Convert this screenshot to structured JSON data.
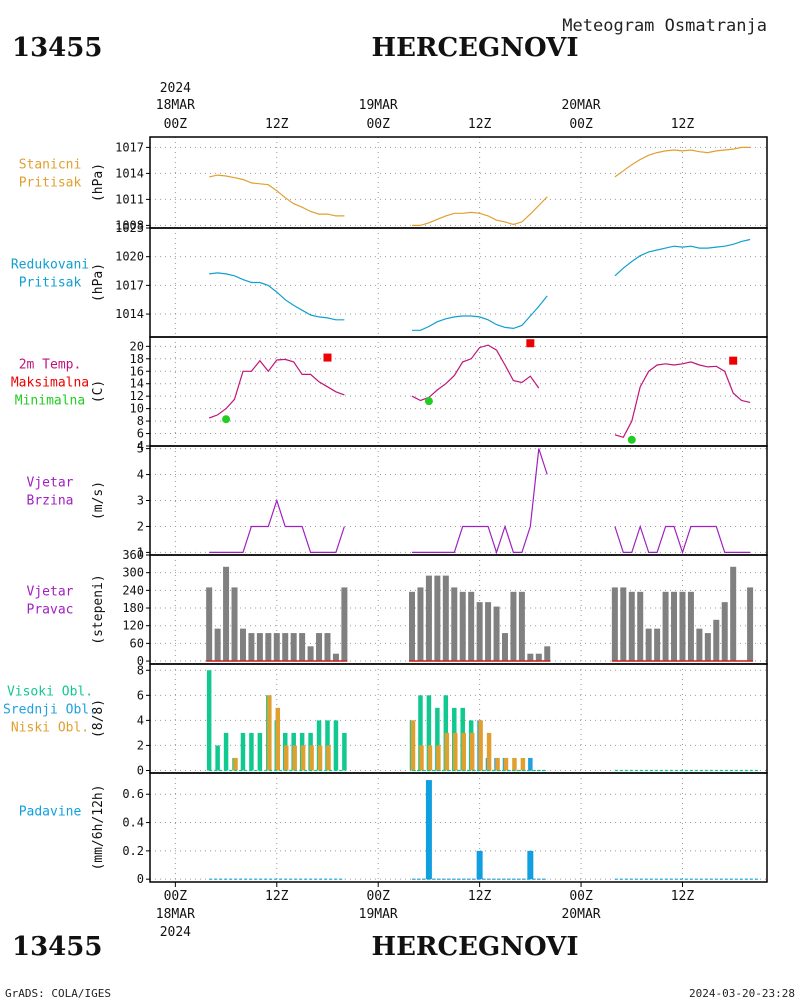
{
  "header": {
    "station_id": "13455",
    "station_name": "HERCEGNOVI",
    "product": "Meteogram Osmatranja"
  },
  "footer": {
    "credit": "GrADS: COLA/IGES",
    "timestamp": "2024-03-20-23:28"
  },
  "time_axis": {
    "year": "2024",
    "ticks": [
      {
        "hour": 0,
        "top": "18MAR",
        "bottom": "00Z"
      },
      {
        "hour": 12,
        "top": "",
        "bottom": "12Z"
      },
      {
        "hour": 24,
        "top": "19MAR",
        "bottom": "00Z"
      },
      {
        "hour": 36,
        "top": "",
        "bottom": "12Z"
      },
      {
        "hour": 48,
        "top": "20MAR",
        "bottom": "00Z"
      },
      {
        "hour": 60,
        "top": "",
        "bottom": "12Z"
      }
    ],
    "xlim_hours": [
      -3,
      70
    ]
  },
  "colors": {
    "pressure_station": "#e0a030",
    "pressure_reduced": "#10a0d0",
    "temperature": "#c0157a",
    "tmax": "#ee0000",
    "tmin": "#22cc22",
    "wind": "#a020c0",
    "wind_dir_bars": "#808080",
    "cloud_high": "#10c890",
    "cloud_middle": "#20a0e0",
    "cloud_low": "#e0a030",
    "precip": "#10a0e0",
    "grid": "#999999"
  },
  "chart_data": [
    {
      "id": "station-pressure",
      "type": "line",
      "labels": [
        "Stanicni",
        "Pritisak"
      ],
      "ylabel": "(hPa)",
      "ylim": [
        1007.7,
        1018.2
      ],
      "yticks": [
        1008,
        1011,
        1014,
        1017
      ],
      "color_key": "pressure_station",
      "series": [
        {
          "x": [
            4,
            5,
            6,
            7,
            8,
            9,
            10,
            11,
            12,
            13,
            14,
            15,
            16,
            17,
            18,
            19,
            20
          ],
          "y": [
            1013.6,
            1013.8,
            1013.7,
            1013.5,
            1013.3,
            1012.9,
            1012.8,
            1012.7,
            1012.0,
            1011.2,
            1010.5,
            1010.1,
            1009.6,
            1009.3,
            1009.3,
            1009.1,
            1009.1
          ]
        },
        {
          "x": [
            28,
            29,
            30,
            31,
            32,
            33,
            34,
            35,
            36,
            37,
            38,
            39,
            40,
            41,
            42,
            43,
            44
          ],
          "y": [
            1008.0,
            1008.0,
            1008.3,
            1008.7,
            1009.1,
            1009.4,
            1009.4,
            1009.5,
            1009.4,
            1009.1,
            1008.6,
            1008.4,
            1008.1,
            1008.4,
            1009.3,
            1010.3,
            1011.3
          ]
        },
        {
          "x": [
            52,
            53,
            54,
            55,
            56,
            57,
            58,
            59,
            60,
            61,
            62,
            63,
            64,
            65,
            66,
            67,
            68
          ],
          "y": [
            1013.6,
            1014.3,
            1015.0,
            1015.6,
            1016.1,
            1016.4,
            1016.6,
            1016.7,
            1016.6,
            1016.7,
            1016.5,
            1016.4,
            1016.6,
            1016.7,
            1016.8,
            1017.0,
            1017.0
          ]
        }
      ]
    },
    {
      "id": "reduced-pressure",
      "type": "line",
      "labels": [
        "Redukovani",
        "Pritisak"
      ],
      "ylabel": "(hPa)",
      "ylim": [
        1011.6,
        1023.0
      ],
      "yticks": [
        1014,
        1017,
        1020,
        1023
      ],
      "color_key": "pressure_reduced",
      "series": [
        {
          "x": [
            4,
            5,
            6,
            7,
            8,
            9,
            10,
            11,
            12,
            13,
            14,
            15,
            16,
            17,
            18,
            19,
            20
          ],
          "y": [
            1018.2,
            1018.3,
            1018.2,
            1018.0,
            1017.6,
            1017.3,
            1017.3,
            1017.0,
            1016.3,
            1015.5,
            1014.9,
            1014.4,
            1013.9,
            1013.7,
            1013.6,
            1013.4,
            1013.4
          ]
        },
        {
          "x": [
            28,
            29,
            30,
            31,
            32,
            33,
            34,
            35,
            36,
            37,
            38,
            39,
            40,
            41,
            42,
            43,
            44
          ],
          "y": [
            1012.3,
            1012.3,
            1012.7,
            1013.2,
            1013.5,
            1013.7,
            1013.8,
            1013.8,
            1013.7,
            1013.4,
            1012.9,
            1012.6,
            1012.5,
            1012.8,
            1013.8,
            1014.8,
            1015.9
          ]
        },
        {
          "x": [
            52,
            53,
            54,
            55,
            56,
            57,
            58,
            59,
            60,
            61,
            62,
            63,
            64,
            65,
            66,
            67,
            68
          ],
          "y": [
            1018.0,
            1018.8,
            1019.5,
            1020.1,
            1020.5,
            1020.7,
            1020.9,
            1021.1,
            1021.0,
            1021.1,
            1020.9,
            1020.9,
            1021.0,
            1021.1,
            1021.3,
            1021.6,
            1021.8
          ]
        }
      ]
    },
    {
      "id": "temperature",
      "type": "line",
      "labels": [
        "2m Temp.",
        "Maksimalna",
        "Minimalna"
      ],
      "ylabel": "(C)",
      "ylim": [
        4,
        21.5
      ],
      "yticks": [
        4,
        6,
        8,
        10,
        12,
        14,
        16,
        18,
        20
      ],
      "color_key": "temperature",
      "series": [
        {
          "x": [
            4,
            5,
            6,
            7,
            8,
            9,
            10,
            11,
            12,
            13,
            14,
            15,
            16,
            17,
            18,
            19,
            20
          ],
          "y": [
            8.5,
            9,
            10,
            11.5,
            16,
            16,
            17.7,
            16,
            17.8,
            17.9,
            17.5,
            15.5,
            15.5,
            14.3,
            13.5,
            12.7,
            12.2
          ]
        },
        {
          "x": [
            28,
            29,
            30,
            31,
            32,
            33,
            34,
            35,
            36,
            37,
            38,
            39,
            40,
            41,
            42,
            43,
            44
          ],
          "y": [
            12,
            11.3,
            11.8,
            13,
            14,
            15.3,
            17.5,
            18,
            19.8,
            20.2,
            19.4,
            17,
            14.5,
            14.2,
            15.2,
            13.3,
            null
          ]
        },
        {
          "x": [
            52,
            53,
            54,
            55,
            56,
            57,
            58,
            59,
            60,
            61,
            62,
            63,
            64,
            65,
            66,
            67,
            68
          ],
          "y": [
            5.8,
            5.4,
            8,
            13.5,
            16,
            17,
            17.2,
            17,
            17.2,
            17.5,
            17,
            16.7,
            16.8,
            16,
            12.5,
            11.3,
            11
          ]
        }
      ],
      "tmax_points": [
        {
          "x": 18,
          "y": 18.2
        },
        {
          "x": 42,
          "y": 20.5
        },
        {
          "x": 66,
          "y": 17.7
        }
      ],
      "tmin_points": [
        {
          "x": 6,
          "y": 8.3
        },
        {
          "x": 30,
          "y": 11.2
        },
        {
          "x": 54,
          "y": 5
        }
      ]
    },
    {
      "id": "wind-speed",
      "type": "line",
      "labels": [
        "Vjetar",
        "Brzina"
      ],
      "ylabel": "(m/s)",
      "ylim": [
        0.9,
        5.1
      ],
      "yticks": [
        1,
        2,
        3,
        4,
        5
      ],
      "color_key": "wind",
      "series": [
        {
          "x": [
            4,
            5,
            6,
            7,
            8,
            9,
            10,
            11,
            12,
            13,
            14,
            15,
            16,
            17,
            18,
            19,
            20
          ],
          "y": [
            1,
            1,
            1,
            1,
            1,
            2,
            2,
            2,
            3,
            2,
            2,
            2,
            1,
            1,
            1,
            1,
            2
          ]
        },
        {
          "x": [
            28,
            29,
            30,
            31,
            32,
            33,
            34,
            35,
            36,
            37,
            38,
            39,
            40,
            41,
            42,
            43
          ],
          "y": [
            1,
            1,
            1,
            1,
            1,
            1,
            2,
            2,
            2,
            2,
            1,
            2,
            1,
            1,
            2,
            5
          ]
        },
        {
          "x": [
            43,
            44
          ],
          "y": [
            5,
            4
          ]
        },
        {
          "x": [
            52,
            53,
            54,
            55,
            56,
            57,
            58,
            59,
            60,
            61,
            62,
            63,
            64,
            65,
            66,
            67,
            68
          ],
          "y": [
            2,
            1,
            1,
            2,
            1,
            1,
            2,
            2,
            1,
            2,
            2,
            2,
            2,
            1,
            1,
            1,
            1
          ]
        }
      ]
    },
    {
      "id": "wind-direction",
      "type": "bar",
      "labels": [
        "Vjetar",
        "Pravac"
      ],
      "ylabel": "(stepeni)",
      "ylim": [
        -10,
        360
      ],
      "yticks": [
        0,
        60,
        120,
        180,
        240,
        300,
        360
      ],
      "color_key": "wind_dir_bars",
      "x": [
        4,
        5,
        6,
        7,
        8,
        9,
        10,
        11,
        12,
        13,
        14,
        15,
        16,
        17,
        18,
        19,
        20,
        28,
        29,
        30,
        31,
        32,
        33,
        34,
        35,
        36,
        37,
        38,
        39,
        40,
        41,
        42,
        43,
        44,
        52,
        53,
        54,
        55,
        56,
        57,
        58,
        59,
        60,
        61,
        62,
        63,
        64,
        65,
        66,
        67,
        68,
        69
      ],
      "values": [
        250,
        110,
        320,
        250,
        110,
        95,
        95,
        95,
        95,
        95,
        95,
        95,
        50,
        95,
        95,
        25,
        250,
        235,
        250,
        290,
        290,
        290,
        250,
        235,
        235,
        200,
        200,
        185,
        95,
        235,
        235,
        25,
        25,
        50,
        250,
        250,
        235,
        235,
        110,
        110,
        235,
        235,
        235,
        235,
        110,
        95,
        140,
        200,
        320,
        0,
        250,
        0
      ]
    },
    {
      "id": "clouds",
      "type": "bar",
      "labels": [
        "Visoki Obl.",
        "Srednji Obl.",
        "Niski Obl."
      ],
      "ylabel": "(8/8)",
      "ylim": [
        -0.2,
        8.5
      ],
      "yticks": [
        0,
        2,
        4,
        6,
        8
      ],
      "series": [
        {
          "name": "Visoki Obl.",
          "color_key": "cloud_high",
          "x": [
            4,
            5,
            6,
            7,
            8,
            9,
            10,
            11,
            12,
            13,
            14,
            15,
            16,
            17,
            18,
            19,
            20,
            28,
            29,
            30,
            31,
            32,
            33,
            34,
            35,
            36,
            37
          ],
          "values": [
            8,
            2,
            3,
            1,
            3,
            3,
            3,
            6,
            4,
            3,
            3,
            3,
            3,
            4,
            4,
            4,
            3,
            4,
            6,
            6,
            5,
            6,
            5,
            5,
            4,
            4,
            1
          ]
        },
        {
          "name": "Srednji Obl.",
          "color_key": "cloud_middle",
          "x": [
            36,
            37,
            38,
            39,
            40,
            41,
            42
          ],
          "values": [
            4,
            1,
            1,
            1,
            0,
            0,
            1
          ]
        },
        {
          "name": "Niski Obl.",
          "color_key": "cloud_low",
          "x": [
            7,
            11,
            12,
            13,
            14,
            15,
            16,
            17,
            18,
            28,
            29,
            30,
            31,
            32,
            33,
            34,
            35,
            36,
            37,
            38,
            39,
            40,
            41
          ],
          "values": [
            1,
            6,
            5,
            2,
            2,
            2,
            2,
            2,
            2,
            4,
            2,
            2,
            2,
            3,
            3,
            3,
            3,
            4,
            3,
            1,
            1,
            1,
            1
          ]
        }
      ]
    },
    {
      "id": "precipitation",
      "type": "bar",
      "labels": [
        "Padavine"
      ],
      "ylabel": "(mm/6h/12h)",
      "ylim": [
        -0.02,
        0.75
      ],
      "yticks": [
        0,
        0.2,
        0.4,
        0.6
      ],
      "tick_labels": [
        "0",
        "0.2",
        "0.4",
        "0.6"
      ],
      "color_key": "precip",
      "x": [
        30,
        36,
        42
      ],
      "values": [
        0.7,
        0.2,
        0.2
      ]
    }
  ]
}
